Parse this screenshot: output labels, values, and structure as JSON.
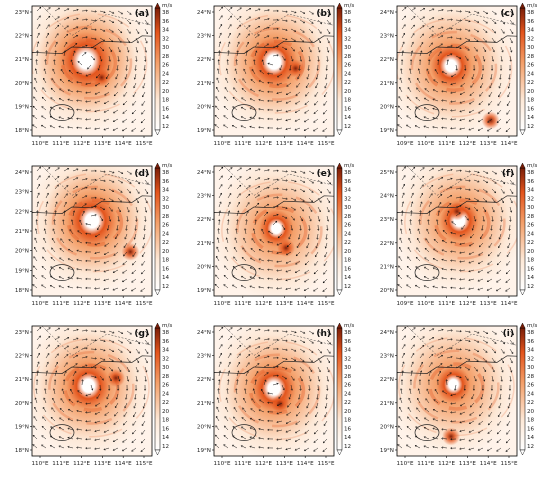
{
  "figure": {
    "colorbar_units": "m/s",
    "colorbar_ticks": [
      "38",
      "36",
      "34",
      "32",
      "30",
      "28",
      "26",
      "24",
      "22",
      "20",
      "18",
      "16",
      "14",
      "12"
    ],
    "colors": {
      "light": "#fde8d6",
      "mid": "#f4a06a",
      "strong": "#e3541c",
      "dark": "#7a1e08"
    },
    "panels": [
      {
        "label": "(a)",
        "lat_ticks": [
          "23°N",
          "22°N",
          "21°N",
          "20°N",
          "19°N",
          "18°N"
        ],
        "lon_ticks": [
          "110°E",
          "111°E",
          "112°E",
          "113°E",
          "114°E",
          "115°E"
        ]
      },
      {
        "label": "(b)",
        "lat_ticks": [
          "24°N",
          "23°N",
          "22°N",
          "21°N",
          "20°N",
          "19°N"
        ],
        "lon_ticks": [
          "110°E",
          "111°E",
          "112°E",
          "113°E",
          "114°E",
          "115°E"
        ]
      },
      {
        "label": "(c)",
        "lat_ticks": [
          "24°N",
          "23°N",
          "22°N",
          "21°N",
          "20°N",
          "19°N"
        ],
        "lon_ticks": [
          "109°E",
          "110°E",
          "111°E",
          "112°E",
          "113°E",
          "114°E"
        ]
      },
      {
        "label": "(d)",
        "lat_ticks": [
          "24°N",
          "23°N",
          "22°N",
          "21°N",
          "20°N",
          "19°N",
          "18°N"
        ],
        "lon_ticks": [
          "110°E",
          "111°E",
          "112°E",
          "113°E",
          "114°E",
          "115°E"
        ]
      },
      {
        "label": "(e)",
        "lat_ticks": [
          "24°N",
          "23°N",
          "22°N",
          "21°N",
          "20°N",
          "19°N"
        ],
        "lon_ticks": [
          "110°E",
          "111°E",
          "112°E",
          "113°E",
          "114°E",
          "115°E"
        ]
      },
      {
        "label": "(f)",
        "lat_ticks": [
          "25°N",
          "24°N",
          "23°N",
          "22°N",
          "21°N",
          "20°N"
        ],
        "lon_ticks": [
          "109°E",
          "110°E",
          "111°E",
          "112°E",
          "113°E",
          "114°E"
        ]
      },
      {
        "label": "(g)",
        "lat_ticks": [
          "23°N",
          "22°N",
          "21°N",
          "20°N",
          "19°N",
          "18°N"
        ],
        "lon_ticks": [
          "110°E",
          "111°E",
          "112°E",
          "113°E",
          "114°E",
          "115°E"
        ]
      },
      {
        "label": "(h)",
        "lat_ticks": [
          "24°N",
          "23°N",
          "22°N",
          "21°N",
          "20°N",
          "19°N"
        ],
        "lon_ticks": [
          "110°E",
          "111°E",
          "112°E",
          "113°E",
          "114°E",
          "115°E"
        ]
      },
      {
        "label": "(i)",
        "lat_ticks": [
          "24°N",
          "23°N",
          "22°N",
          "21°N",
          "20°N",
          "19°N"
        ],
        "lon_ticks": [
          "110°E",
          "111°E",
          "112°E",
          "113°E",
          "114°E",
          "115°E"
        ]
      }
    ]
  }
}
